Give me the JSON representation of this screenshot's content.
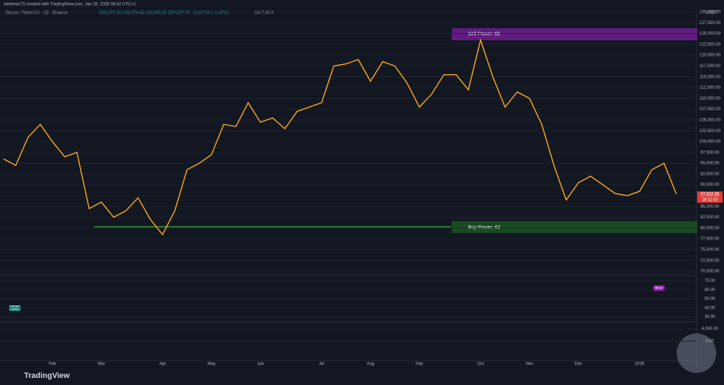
{
  "header": {
    "attribution": "belemac73 created with TradingView.com, Jan 26, 2026 08:42 UTC+1",
    "symbol": "Bitcoin / TetherUS · 1D · Binance",
    "ohlc": "O86,675.36 H88,074.48 L86,309.62 C87,937.90 +1,267.54 (+1.46%)",
    "volume": "Vol 7.36 K"
  },
  "currency": "USDT",
  "last_price": {
    "price": "87,937.90",
    "countdown": "16:11:02"
  },
  "annotations": {
    "sell_power": "Sell Power: 68",
    "buy_power": "Buy Power: 62",
    "bull": "Bull",
    "bear": "Bear"
  },
  "footer": {
    "brand": "TradingView"
  },
  "chart_data": {
    "type": "line",
    "color": "#f5a623",
    "categories": [
      null,
      null,
      null,
      null,
      "Feb",
      null,
      null,
      null,
      "Mar",
      null,
      null,
      null,
      null,
      "Apr",
      null,
      null,
      null,
      "May",
      null,
      null,
      null,
      "Jun",
      null,
      null,
      null,
      null,
      "Jul",
      null,
      null,
      null,
      "Aug",
      null,
      null,
      null,
      "Sep",
      null,
      null,
      null,
      null,
      "Oct",
      null,
      null,
      null,
      "Nov",
      null,
      null,
      null,
      "Dec",
      null,
      null,
      null,
      null,
      "2026",
      null,
      null,
      null
    ],
    "values": [
      96000,
      94500,
      101000,
      104000,
      100000,
      96500,
      97500,
      84500,
      86000,
      82500,
      84000,
      87000,
      82000,
      78500,
      84000,
      93500,
      95000,
      97000,
      104000,
      103500,
      109000,
      104500,
      105500,
      103000,
      107000,
      108000,
      109000,
      117500,
      118000,
      119000,
      114000,
      118500,
      117500,
      113500,
      108000,
      111000,
      115500,
      115500,
      112000,
      123500,
      115000,
      108000,
      111500,
      110000,
      104000,
      94500,
      86500,
      90500,
      92000,
      90000,
      88000,
      87500,
      88500,
      93500,
      95000,
      87900
    ],
    "ylim": [
      70000,
      130000
    ],
    "yticks": [
      {
        "value": 70000,
        "label": "70,000.00"
      },
      {
        "value": 72500,
        "label": "72,500.00"
      },
      {
        "value": 75000,
        "label": "75,000.00"
      },
      {
        "value": 77500,
        "label": "77,500.00"
      },
      {
        "value": 80000,
        "label": "80,000.00"
      },
      {
        "value": 82500,
        "label": "82,500.00"
      },
      {
        "value": 85000,
        "label": "85,000.00"
      },
      {
        "value": 87500,
        "label": "87,500.00"
      },
      {
        "value": 90000,
        "label": "90,000.00"
      },
      {
        "value": 92500,
        "label": "92,500.00"
      },
      {
        "value": 95000,
        "label": "95,000.00"
      },
      {
        "value": 97500,
        "label": "97,500.00"
      },
      {
        "value": 100000,
        "label": "100,000.00"
      },
      {
        "value": 102500,
        "label": "102,500.00"
      },
      {
        "value": 105000,
        "label": "105,000.00"
      },
      {
        "value": 107500,
        "label": "107,500.00"
      },
      {
        "value": 110000,
        "label": "110,000.00"
      },
      {
        "value": 112500,
        "label": "112,500.00"
      },
      {
        "value": 115000,
        "label": "115,000.00"
      },
      {
        "value": 117500,
        "label": "117,500.00"
      },
      {
        "value": 120000,
        "label": "120,000.00"
      },
      {
        "value": 122500,
        "label": "122,500.00"
      },
      {
        "value": 125000,
        "label": "125,000.00"
      },
      {
        "value": 127500,
        "label": "127,500.00"
      },
      {
        "value": 130000,
        "label": "130,000.00"
      }
    ],
    "grid": true
  },
  "oscillator_pane": {
    "ylim": [
      25,
      75
    ],
    "yticks": [
      {
        "value": 70,
        "label": "70.00"
      },
      {
        "value": 60,
        "label": "60.00"
      },
      {
        "value": 50,
        "label": "50.00"
      },
      {
        "value": 40,
        "label": "40.00"
      },
      {
        "value": 30,
        "label": "30.00"
      }
    ]
  },
  "macd_pane": {
    "ylim": [
      -6000,
      6000
    ],
    "yticks": [
      {
        "value": 4000,
        "label": "4,000.00"
      },
      {
        "value": 0,
        "label": "0.00"
      }
    ]
  }
}
